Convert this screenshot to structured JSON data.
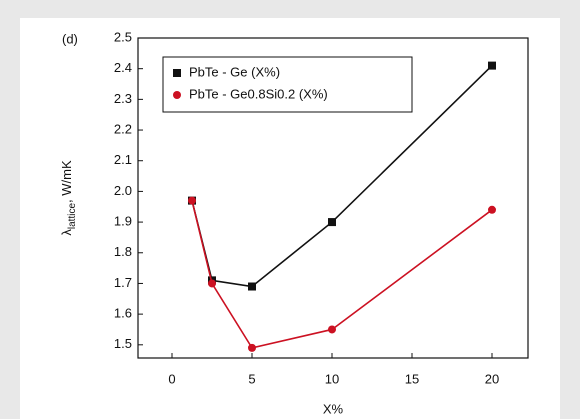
{
  "chart_data": {
    "type": "line",
    "panel_label": "(d)",
    "ylabel": {
      "symbol": "λ",
      "subscript": "lattice",
      "unit": ", W/mK"
    },
    "xlabel": "X%",
    "x": [
      1.25,
      2.5,
      5,
      10,
      20
    ],
    "series": [
      {
        "name": "PbTe - Ge (X%)",
        "color": "#111111",
        "marker": "square",
        "values": [
          1.97,
          1.71,
          1.69,
          1.9,
          2.41
        ]
      },
      {
        "name": "PbTe - Ge0.8Si0.2 (X%)",
        "color": "#cc1122",
        "marker": "circle",
        "values": [
          1.97,
          1.7,
          1.49,
          1.55,
          1.94
        ]
      }
    ],
    "xlim": [
      -2.125,
      22.25
    ],
    "xticks": [
      0,
      5,
      10,
      15,
      20
    ],
    "ylim": [
      1.457,
      2.5
    ],
    "yticks": [
      1.5,
      1.6,
      1.7,
      1.8,
      1.9,
      {
        "value": 2,
        "label": "2.0"
      },
      2.1,
      2.2,
      2.3,
      2.4,
      2.5
    ],
    "legend": "upper-left"
  }
}
